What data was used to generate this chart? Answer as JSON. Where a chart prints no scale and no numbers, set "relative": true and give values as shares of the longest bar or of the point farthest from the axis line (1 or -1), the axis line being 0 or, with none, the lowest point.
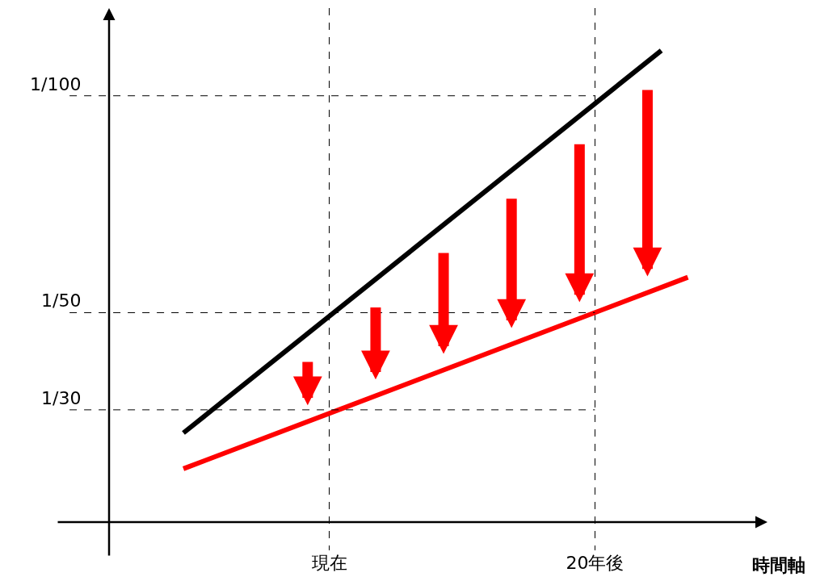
{
  "chart_data": {
    "type": "line",
    "relative": true,
    "xlabel": "時間軸",
    "categories": [
      null,
      null,
      null,
      null,
      null,
      null,
      null,
      null,
      null,
      null,
      null,
      null,
      null,
      null,
      null,
      null,
      "現在",
      null,
      null,
      null,
      null,
      null,
      null,
      null,
      null,
      null,
      null,
      null,
      null,
      null,
      null,
      null,
      null,
      null,
      null,
      null,
      "20年後",
      null,
      null,
      null,
      null,
      null,
      null,
      null,
      null,
      null,
      null,
      null,
      null
    ],
    "series": [
      {
        "color": "#000000",
        "values": [
          null,
          null,
          null,
          null,
          null,
          0.189,
          null,
          null,
          null,
          null,
          null,
          null,
          null,
          null,
          null,
          null,
          null,
          null,
          null,
          null,
          null,
          null,
          null,
          null,
          null,
          null,
          null,
          null,
          null,
          null,
          null,
          null,
          null,
          null,
          null,
          null,
          null,
          null,
          null,
          null,
          null,
          1.0,
          null,
          null,
          null,
          null,
          null,
          null,
          null
        ]
      },
      {
        "color": "#ff0000",
        "values": [
          null,
          null,
          null,
          null,
          null,
          0.113,
          null,
          null,
          null,
          null,
          null,
          null,
          null,
          null,
          null,
          null,
          null,
          null,
          null,
          null,
          null,
          null,
          null,
          null,
          null,
          null,
          null,
          null,
          null,
          null,
          null,
          null,
          null,
          null,
          null,
          null,
          null,
          null,
          null,
          null,
          null,
          null,
          null,
          0.519,
          null,
          null,
          null,
          null,
          null
        ]
      }
    ],
    "ref_lines": [
      {
        "axis": "y",
        "value": 0.904,
        "line_style": "dashed",
        "color": "#000000"
      },
      {
        "axis": "y",
        "value": 0.444,
        "line_style": "dashed",
        "color": "#000000"
      },
      {
        "axis": "y",
        "value": 0.238,
        "line_style": "dashed",
        "color": "#000000"
      }
    ],
    "annotations": [
      "1/100",
      "1/50",
      "1/30"
    ],
    "grid": "x",
    "marker": "none",
    "line_style": "solid"
  }
}
